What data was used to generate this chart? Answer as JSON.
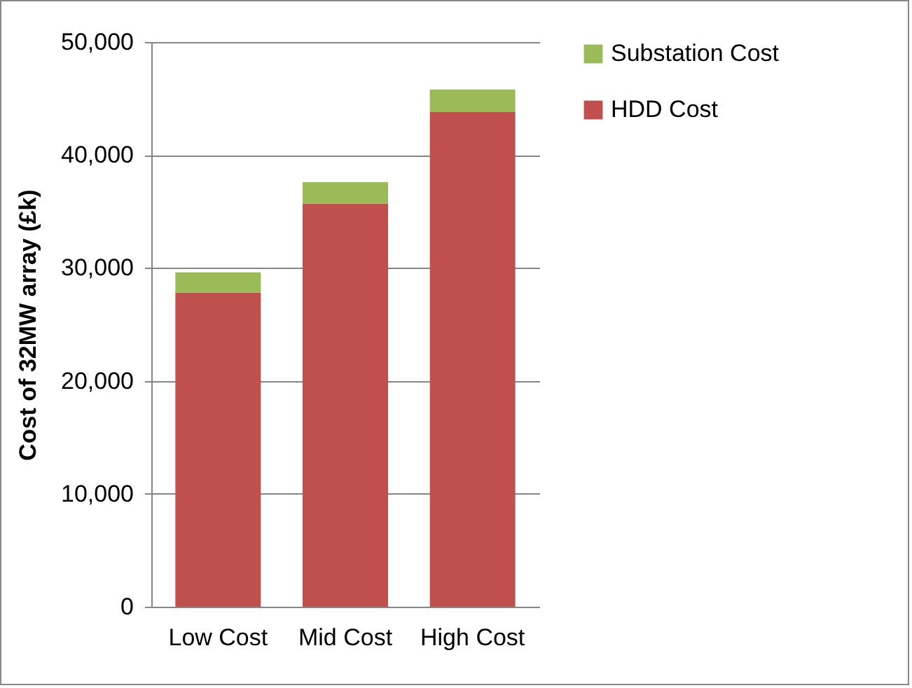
{
  "chart_data": {
    "type": "bar",
    "stacked": true,
    "ylabel": "Cost of 32MW array (£k)",
    "categories": [
      "Low Cost",
      "Mid Cost",
      "High Cost"
    ],
    "series": [
      {
        "name": "HDD Cost",
        "color": "#c0504d",
        "values": [
          27800,
          35700,
          43800
        ]
      },
      {
        "name": "Substation Cost",
        "color": "#9bbb59",
        "values": [
          1800,
          1900,
          2000
        ]
      }
    ],
    "ylim": [
      0,
      50000
    ],
    "yticks": [
      0,
      {
        "value": 10000,
        "label": "10,000"
      },
      {
        "value": 20000,
        "label": "20,000"
      },
      {
        "value": 30000,
        "label": "30,000"
      },
      {
        "value": 40000,
        "label": "40,000"
      },
      {
        "value": 50000,
        "label": "50,000"
      }
    ],
    "grid": "y",
    "legend": "right"
  }
}
